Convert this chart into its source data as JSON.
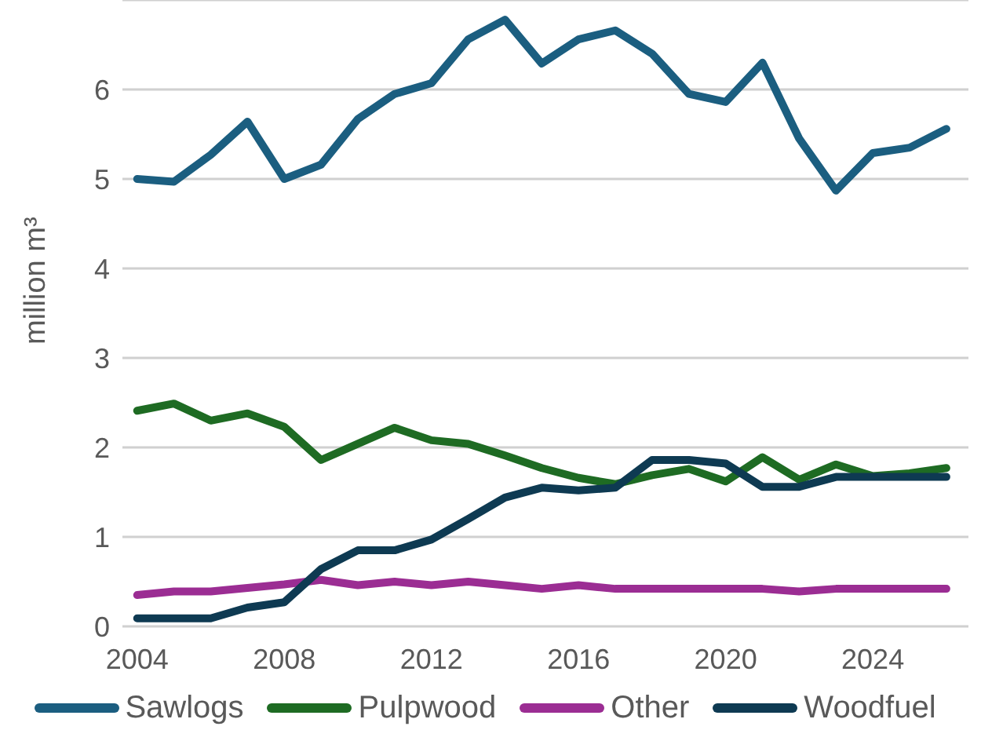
{
  "chart_data": {
    "type": "line",
    "ylabel": "million m³",
    "x": [
      2004,
      2005,
      2006,
      2007,
      2008,
      2009,
      2010,
      2011,
      2012,
      2013,
      2014,
      2015,
      2016,
      2017,
      2018,
      2019,
      2020,
      2021,
      2022,
      2023,
      2024,
      2025,
      2026
    ],
    "series": [
      {
        "name": "Sawlogs",
        "color": "#1b5e80",
        "values": [
          5.0,
          4.97,
          5.27,
          5.64,
          5.0,
          5.16,
          5.67,
          5.95,
          6.07,
          6.56,
          6.78,
          6.29,
          6.56,
          6.66,
          6.4,
          5.95,
          5.86,
          6.3,
          5.45,
          4.87,
          5.29,
          5.35,
          5.56
        ]
      },
      {
        "name": "Pulpwood",
        "color": "#1e6b23",
        "values": [
          2.41,
          2.49,
          2.3,
          2.38,
          2.23,
          1.86,
          2.04,
          2.22,
          2.08,
          2.04,
          1.91,
          1.77,
          1.66,
          1.59,
          1.69,
          1.76,
          1.62,
          1.89,
          1.64,
          1.81,
          1.68,
          1.71,
          1.77
        ]
      },
      {
        "name": "Other",
        "color": "#9b2d93",
        "values": [
          0.35,
          0.39,
          0.39,
          0.43,
          0.47,
          0.52,
          0.46,
          0.5,
          0.46,
          0.5,
          0.46,
          0.42,
          0.46,
          0.42,
          0.42,
          0.42,
          0.42,
          0.42,
          0.39,
          0.42,
          0.42,
          0.42,
          0.42
        ]
      },
      {
        "name": "Woodfuel",
        "color": "#0e3a52",
        "values": [
          0.09,
          0.09,
          0.09,
          0.21,
          0.27,
          0.64,
          0.85,
          0.85,
          0.97,
          1.2,
          1.44,
          1.55,
          1.52,
          1.55,
          1.86,
          1.86,
          1.82,
          1.56,
          1.56,
          1.67,
          1.67,
          1.67,
          1.67
        ]
      }
    ],
    "xlim": [
      2003.6,
      2026.6
    ],
    "xticks": [
      2004,
      2008,
      2012,
      2016,
      2020,
      2024
    ],
    "ylim": [
      0,
      7
    ],
    "yticks": [
      0,
      1,
      2,
      3,
      4,
      5,
      6
    ],
    "grid": "y",
    "legend": "bottom",
    "marker": "none",
    "line_style": "solid"
  }
}
